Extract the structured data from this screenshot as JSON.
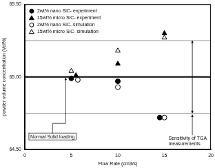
{
  "chart_data": {
    "type": "scatter",
    "x_label": "Flow Rate (cm3/s)",
    "y_label": "powder volume concentration (Vol%)",
    "xlim": [
      0,
      20
    ],
    "xticks": [
      0,
      5,
      10,
      15,
      20
    ],
    "ylim": [
      64.5,
      65.5
    ],
    "yticks": [
      {
        "value": 64.5,
        "label": "64.50"
      },
      {
        "value": 65,
        "label": "65.00"
      },
      {
        "value": 65.5,
        "label": "65.50"
      }
    ],
    "grid": false,
    "legend": "top-left",
    "series": [
      {
        "name": "2wt% nano SiC- experiment",
        "color": "#000000",
        "marker": "circle",
        "x": [
          5,
          10,
          14.5
        ],
        "values": [
          64.99,
          64.97,
          64.72
        ]
      },
      {
        "name": "15wt% micro SiC- experiment",
        "color": "#000000",
        "marker": "triangle",
        "x": [
          5.5,
          10,
          15
        ],
        "values": [
          65.01,
          65.09,
          65.3
        ]
      },
      {
        "name": "2wt% nano SiC- simulation",
        "color": "#000000",
        "marker": "open_circle",
        "x": [
          5.7,
          10,
          15
        ],
        "values": [
          64.98,
          64.93,
          64.72
        ]
      },
      {
        "name": "15wt% micro SiC- simulation",
        "color": "#000000",
        "marker": "open_triangle",
        "x": [
          5,
          10,
          15
        ],
        "values": [
          65.04,
          65.18,
          65.27
        ]
      }
    ],
    "annotations": [
      {
        "text": "Normal Solid loading",
        "y": 65
      },
      {
        "text": "Sensitivity of TGA measurements",
        "y": [
          64.75,
          65.25
        ],
        "x": 18
      }
    ]
  }
}
